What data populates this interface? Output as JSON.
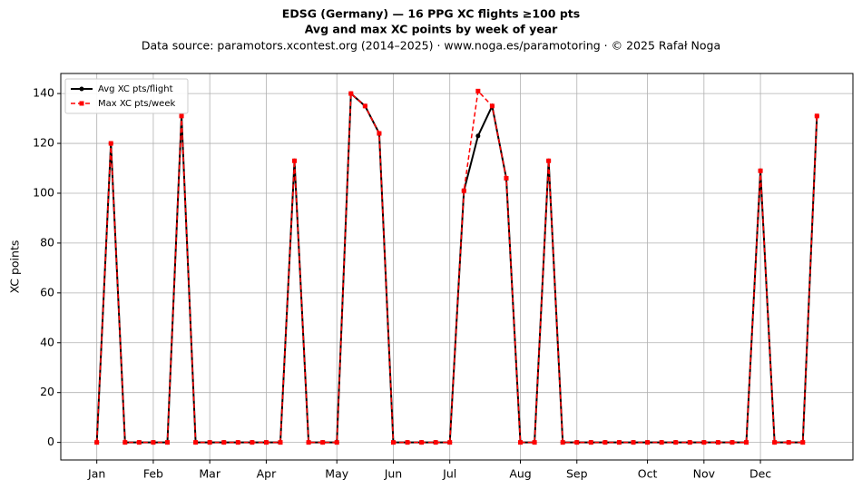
{
  "chart_data": {
    "type": "line",
    "title": "EDSG (Germany)  —  16 PPG XC flights ≥100 pts",
    "subtitle": "Avg and max XC points by week of year",
    "source": "Data source: paramotors.xcontest.org (2014–2025)  ·  www.noga.es/paramotoring  ·  © 2025 Rafał Noga",
    "ylabel": "XC points",
    "x": [
      1,
      2,
      3,
      4,
      5,
      6,
      7,
      8,
      9,
      10,
      11,
      12,
      13,
      14,
      15,
      16,
      17,
      18,
      19,
      20,
      21,
      22,
      23,
      24,
      25,
      26,
      27,
      28,
      29,
      30,
      31,
      32,
      33,
      34,
      35,
      36,
      37,
      38,
      39,
      40,
      41,
      42,
      43,
      44,
      45,
      46,
      47,
      48,
      49,
      50,
      51,
      52
    ],
    "series": [
      {
        "name": "Avg XC pts/flight",
        "color": "#000000",
        "dashed": false,
        "marker": "circle",
        "values": [
          0,
          120,
          0,
          0,
          0,
          0,
          131,
          0,
          0,
          0,
          0,
          0,
          0,
          0,
          113,
          0,
          0,
          0,
          140,
          135,
          124,
          0,
          0,
          0,
          0,
          0,
          101,
          123,
          135,
          106,
          0,
          0,
          113,
          0,
          0,
          0,
          0,
          0,
          0,
          0,
          0,
          0,
          0,
          0,
          0,
          0,
          0,
          109,
          0,
          0,
          0,
          131
        ]
      },
      {
        "name": "Max XC pts/week",
        "color": "#ff0000",
        "dashed": true,
        "marker": "square",
        "values": [
          0,
          120,
          0,
          0,
          0,
          0,
          131,
          0,
          0,
          0,
          0,
          0,
          0,
          0,
          113,
          0,
          0,
          0,
          140,
          135,
          124,
          0,
          0,
          0,
          0,
          0,
          101,
          141,
          135,
          106,
          0,
          0,
          113,
          0,
          0,
          0,
          0,
          0,
          0,
          0,
          0,
          0,
          0,
          0,
          0,
          0,
          0,
          109,
          0,
          0,
          0,
          131
        ]
      }
    ],
    "xlim": [
      -1.55,
      54.55
    ],
    "xticks": [
      {
        "value": 1,
        "label": "Jan"
      },
      {
        "value": 5,
        "label": "Feb"
      },
      {
        "value": 9,
        "label": "Mar"
      },
      {
        "value": 13,
        "label": "Apr"
      },
      {
        "value": 18,
        "label": "May"
      },
      {
        "value": 22,
        "label": "Jun"
      },
      {
        "value": 26,
        "label": "Jul"
      },
      {
        "value": 31,
        "label": "Aug"
      },
      {
        "value": 35,
        "label": "Sep"
      },
      {
        "value": 40,
        "label": "Oct"
      },
      {
        "value": 44,
        "label": "Nov"
      },
      {
        "value": 48,
        "label": "Dec"
      }
    ],
    "ylim": [
      -7.05,
      148.05
    ],
    "yticks": [
      0,
      20,
      40,
      60,
      80,
      100,
      120,
      140
    ],
    "grid": true,
    "legend": "upper left"
  }
}
